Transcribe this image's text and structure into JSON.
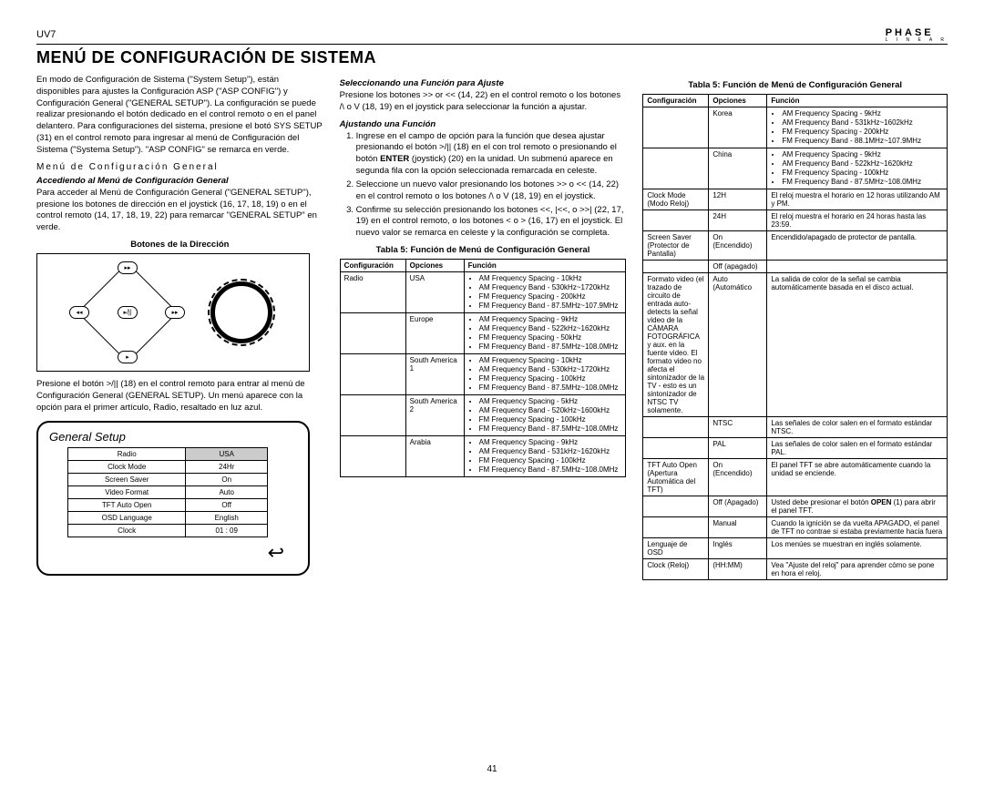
{
  "header": {
    "model": "UV7",
    "brand": "PHASE",
    "brand_sub": "L I N E A R"
  },
  "title": "Menú De Configuración De Sistema",
  "left": {
    "p1": "En modo de Configuración de Sistema (\"System Setup\"), están disponibles para ajustes la Configuración ASP (\"ASP CONFIG\") y Configuración General (\"GENERAL SETUP\"). La configuración se puede realizar presionando el botón dedicado en el control remoto o en el panel delantero. Para configuraciones del sistema, presione el botó SYS SETUP (31) en el control remoto para ingresar al menú de Configuración del Sistema (\"Systema Setup\"). \"ASP CONFIG\" se remarca en verde.",
    "subhead": "Menú de Configuración General",
    "italic1": "Accediendo al Menú de Configuración General",
    "p2": "Para acceder al Menú de Configuración General (\"GENERAL SETUP\"), presione los botones de dirección en el joystick (16, 17, 18, 19) o en el control remoto (14, 17, 18, 19, 22) para remarcar \"GENERAL SETUP\" en verde.",
    "diagram_title": "Botones de la Dirección",
    "p3": "Presione el botón >/|| (18) en el control remoto para entrar al menú de Configuración General (GENERAL SETUP). Un menú aparece con la opción para el primer artículo, Radio, resaltado en luz azul.",
    "gs_title": "General Setup",
    "gs_rows": [
      [
        "Radio",
        "USA"
      ],
      [
        "Clock Mode",
        "24Hr"
      ],
      [
        "Screen Saver",
        "On"
      ],
      [
        "Video Format",
        "Auto"
      ],
      [
        "TFT Auto Open",
        "Off"
      ],
      [
        "OSD Language",
        "English"
      ],
      [
        "Clock",
        "01 : 09"
      ]
    ],
    "back": "↩"
  },
  "mid": {
    "italic1": "Seleccionando una Función para Ajuste",
    "p1": "Presione los botones >> or << (14, 22) en el control remoto o los botones /\\ o V (18, 19) en el joystick para seleccionar la función a ajustar.",
    "italic2": "Ajustando una Función",
    "steps": [
      "Ingrese en el campo de opción para la función que desea ajustar presionando el botón >/|| (18) en el con trol remoto o presionando el botón ENTER (joystick) (20) en la unidad. Un submenú aparece en segunda fila con la opción seleccionada remarcada en celeste.",
      "Seleccione un nuevo valor presionando los botones >> o << (14, 22) en el control remoto o los botones /\\ o V (18, 19) en el joystick.",
      "Confirme su selección presionando los botones <<, |<<, o >>| (22, 17, 19) en el control remoto, o los botones < o > (16, 17) en el joystick. El nuevo valor se remarca en celeste y la configuración se completa."
    ],
    "t5_caption": "Tabla 5: Función de Menú de Configuración General",
    "t5_head": [
      "Configuración",
      "Opciones",
      "Función"
    ],
    "t5_rows": [
      {
        "c": "Radio",
        "o": "USA",
        "f": [
          "AM Frequency Spacing - 10kHz",
          "AM Frequency Band - 530kHz~1720kHz",
          "FM Frequency Spacing - 200kHz",
          "FM Frequency Band - 87.5MHz~107.9MHz"
        ]
      },
      {
        "c": "",
        "o": "Europe",
        "f": [
          "AM Frequency Spacing - 9kHz",
          "AM Frequency Band - 522kHz~1620kHz",
          "FM Frequency Spacing - 50kHz",
          "FM Frequency Band - 87.5MHz~108.0MHz"
        ]
      },
      {
        "c": "",
        "o": "South America 1",
        "f": [
          "AM Frequency Spacing - 10kHz",
          "AM Frequency Band - 530kHz~1720kHz",
          "FM Frequency Spacing - 100kHz",
          "FM Frequency Band - 87.5MHz~108.0MHz"
        ]
      },
      {
        "c": "",
        "o": "South America 2",
        "f": [
          "AM Frequency Spacing - 5kHz",
          "AM Frequency Band - 520kHz~1600kHz",
          "FM Frequency Spacing - 100kHz",
          "FM Frequency Band - 87.5MHz~108.0MHz"
        ]
      },
      {
        "c": "",
        "o": "Arabia",
        "f": [
          "AM Frequency Spacing - 9kHz",
          "AM Frequency Band - 531kHz~1620kHz",
          "FM Frequency Spacing - 100kHz",
          "FM Frequency Band - 87.5MHz~108.0MHz"
        ]
      }
    ]
  },
  "right": {
    "t5_caption": "Tabla 5: Función de Menú de Configuración General",
    "t5_head": [
      "Configuración",
      "Opciones",
      "Función"
    ],
    "t5_rows": [
      {
        "c": "",
        "o": "Korea",
        "f": [
          "AM Frequency Spacing - 9kHz",
          "AM Frequency Band - 531kHz~1602kHz",
          "FM Frequency Spacing - 200kHz",
          "FM Frequency Band - 88.1MHz~107.9MHz"
        ]
      },
      {
        "c": "",
        "o": "China",
        "f": [
          "AM Frequency Spacing - 9kHz",
          "AM Frequency Band - 522kHz~1620kHz",
          "FM Frequency Spacing - 100kHz",
          "FM Frequency Band - 87.5MHz~108.0MHz"
        ]
      },
      {
        "c": "Clock Mode (Modo Reloj)",
        "o": "12H",
        "ft": "El reloj muestra el horario en 12 horas utilizando AM y PM."
      },
      {
        "c": "",
        "o": "24H",
        "ft": "El reloj muestra el horario en 24 horas hasta las 23:59."
      },
      {
        "c": "Screen Saver (Protector de Pantalla)",
        "o": "On (Encendido)",
        "ft": "Encendido/apagado de protector de pantalla."
      },
      {
        "c": "",
        "o": "Off (apagado)",
        "ft": ""
      },
      {
        "c": "Formato video (el trazado de circuito de entrada auto-detects la señal video de la CÁMARA FOTOGRÁFICA y aux. en la fuente video. El formato video no afecta el sintonizador de la TV - esto es un sintonizador de NTSC TV solamente.",
        "o": "Auto (Automático",
        "ft": "La salida de color de la señal se cambia automáticamente basada en el disco actual."
      },
      {
        "c": "",
        "o": "NTSC",
        "ft": "Las señales de color salen en el formato estándar NTSC."
      },
      {
        "c": "",
        "o": "PAL",
        "ft": "Las señales de color salen en el formato estándar PAL."
      },
      {
        "c": "TFT Auto Open (Apertura Automática del TFT)",
        "o": "On (Encendido)",
        "ft": "El panel TFT se abre automáticamente cuando la unidad se enciende."
      },
      {
        "c": "",
        "o": "Off (Apagado)",
        "ft": "Usted debe presionar el botón OPEN (1) para abrir el panel TFT."
      },
      {
        "c": "",
        "o": "Manual",
        "ft": "Cuando la ignición se da vuelta APAGADO, el panel de TFT no contrae si estaba previamente hacia fuera"
      },
      {
        "c": "Lenguaje de OSD",
        "o": "Inglés",
        "ft": "Los menúes se muestran en inglés solamente."
      },
      {
        "c": "Clock (Reloj)",
        "o": "(HH:MM)",
        "ft": "Vea \"Ajuste del reloj\" para aprender cómo se pone en hora el reloj."
      }
    ]
  },
  "page_num": "41"
}
